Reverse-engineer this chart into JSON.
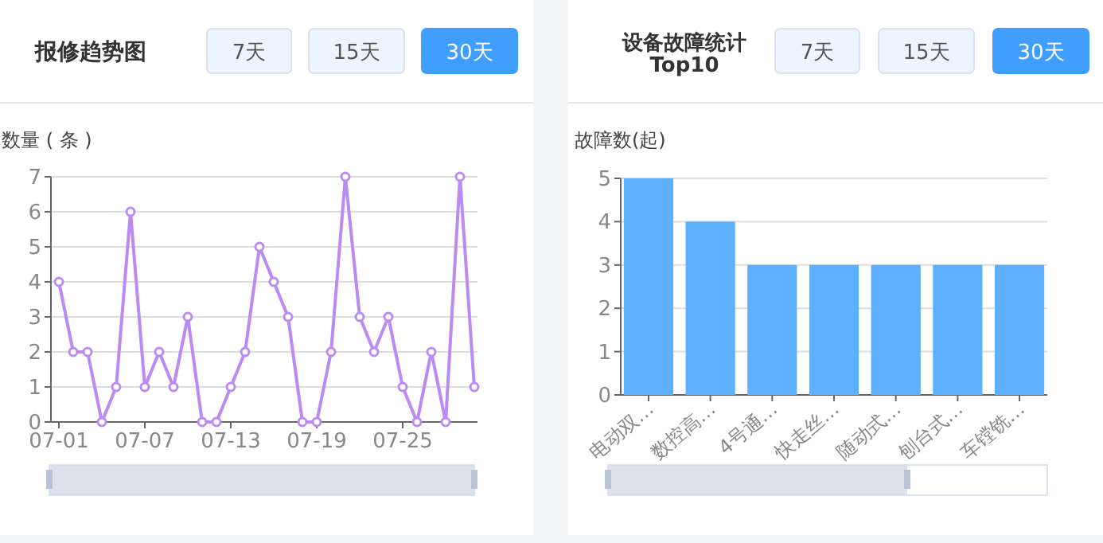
{
  "chart_data": [
    {
      "type": "line",
      "title": "报修趋势图",
      "ylabel": "数量 ( 条 )",
      "annotations": [
        "7天",
        "15天",
        "30天"
      ],
      "categories": [
        "07-01",
        null,
        null,
        null,
        null,
        null,
        "07-07",
        null,
        null,
        null,
        null,
        null,
        "07-13",
        null,
        null,
        null,
        null,
        null,
        "07-19",
        null,
        null,
        null,
        null,
        null,
        "07-25",
        null,
        null,
        null,
        null,
        null
      ],
      "series": [
        {
          "color": "#bb8af5",
          "values": [
            4,
            2,
            2,
            0,
            1,
            6,
            1,
            2,
            1,
            3,
            0,
            0,
            1,
            2,
            5,
            4,
            3,
            0,
            0,
            2,
            7,
            3,
            2,
            3,
            1,
            0,
            2,
            0,
            7,
            1
          ]
        }
      ],
      "ylim": [
        0,
        7
      ],
      "yticks": [
        0,
        1,
        2,
        3,
        4,
        5,
        6,
        7
      ],
      "grid": "y",
      "marker": "circle",
      "line_style": "solid"
    },
    {
      "type": "bar",
      "title": "设备故障统计Top10",
      "ylabel": "故障数(起)",
      "annotations": [
        "7天",
        "15天",
        "30天"
      ],
      "categories": [
        "电动双…",
        "数控高…",
        "4号通…",
        "快走丝…",
        "随动式…",
        "刨台式…",
        "车镗铣…"
      ],
      "series": [
        {
          "color": "#5cb0fe",
          "values": [
            5,
            4,
            3,
            3,
            3,
            3,
            3
          ]
        }
      ],
      "ylim": [
        0,
        5
      ],
      "yticks": [
        0,
        1,
        2,
        3,
        4,
        5
      ],
      "grid": "y"
    }
  ]
}
